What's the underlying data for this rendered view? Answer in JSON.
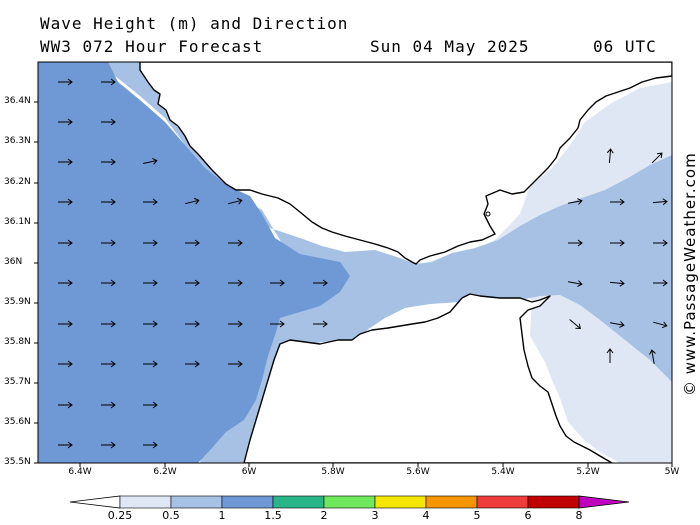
{
  "header": {
    "title": "Wave Height (m) and Direction",
    "model": "WW3 072 Hour Forecast",
    "date": "Sun 04 May 2025",
    "time": "06 UTC"
  },
  "map": {
    "lat_ticks": [
      "36.4N",
      "36.3N",
      "36.2N",
      "36.1N",
      "36N",
      "35.9N",
      "35.8N",
      "35.7N",
      "35.6N",
      "35.5N"
    ],
    "lon_ticks": [
      "6.4W",
      "6.2W",
      "6W",
      "5.8W",
      "5.6W",
      "5.4W",
      "5.2W",
      "5W"
    ],
    "colors": {
      "land": "#ffffff",
      "band_0_25": "#dfe7f5",
      "band_0_5": "#a6c1e3",
      "band_1": "#6f99d5",
      "coast": "#000000"
    }
  },
  "legend": {
    "labels": [
      "0.25",
      "0.5",
      "1",
      "1.5",
      "2",
      "3",
      "4",
      "5",
      "6",
      "8"
    ],
    "colors": [
      "#dfe7f5",
      "#a6c1e3",
      "#6f99d5",
      "#2ab589",
      "#6fe85e",
      "#f5e600",
      "#f59500",
      "#ee3c3c",
      "#c00000",
      "#c000c0"
    ]
  },
  "credit": "© www.PassageWeather.com"
}
